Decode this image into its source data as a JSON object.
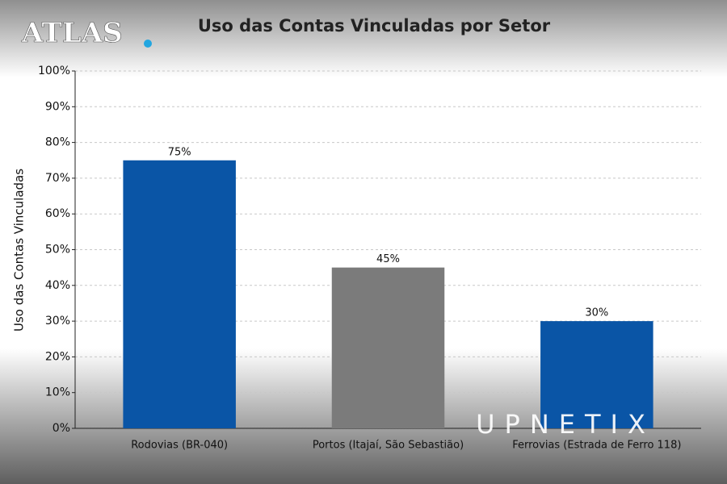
{
  "chart_data": {
    "type": "bar",
    "title": "Uso das Contas Vinculadas por Setor",
    "ylabel": "Uso das Contas Vinculadas",
    "categories": [
      "Rodovias (BR-040)",
      "Portos (Itajaí, São Sebastião)",
      "Ferrovias (Estrada de Ferro 118)"
    ],
    "values": [
      75,
      45,
      30
    ],
    "value_labels": [
      "75%",
      "45%",
      "30%"
    ],
    "colors": [
      "#0a55a6",
      "#7b7b7b",
      "#0a55a6"
    ],
    "ylim": [
      0,
      100
    ],
    "yticks": [
      {
        "value": 0,
        "label": "0%"
      },
      {
        "value": 10,
        "label": "10%"
      },
      {
        "value": 20,
        "label": "20%"
      },
      {
        "value": 30,
        "label": "30%"
      },
      {
        "value": 40,
        "label": "40%"
      },
      {
        "value": 50,
        "label": "50%"
      },
      {
        "value": 60,
        "label": "60%"
      },
      {
        "value": 70,
        "label": "70%"
      },
      {
        "value": 80,
        "label": "80%"
      },
      {
        "value": 90,
        "label": "90%"
      },
      {
        "value": 100,
        "label": "100%"
      }
    ],
    "grid": true
  },
  "watermarks": {
    "logo": "ATLAS",
    "brand": "UPNETIX"
  }
}
